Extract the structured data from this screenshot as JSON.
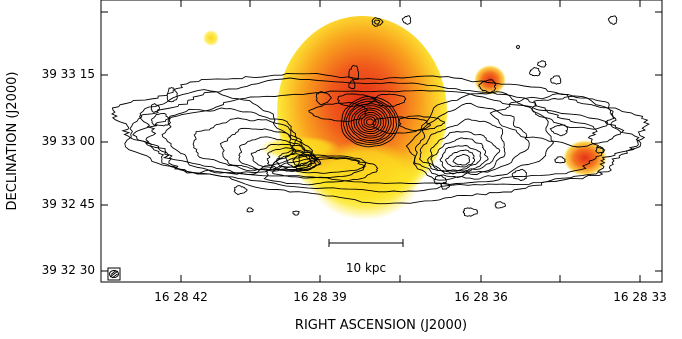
{
  "chart_data": {
    "type": "heatmap",
    "title": "",
    "xlabel": "RIGHT ASCENSION  (J2000)",
    "ylabel": "DECLINATION  (J2000)",
    "x_tick_labels": [
      "16 28 42",
      "16 28 39",
      "16 28 36",
      "16 28 33"
    ],
    "y_tick_labels": [
      "39 33 15",
      "39 33 00",
      "39 32 45",
      "39 32 30"
    ],
    "scale_bar_label": "10 kpc",
    "colors": {
      "frame": "#000000",
      "contour": "#000000",
      "heat_core": "#e8331c",
      "heat_mid": "#f78a1e",
      "heat_edge": "#fde61f",
      "background": "#ffffff"
    },
    "grid": false,
    "legend": "none"
  }
}
